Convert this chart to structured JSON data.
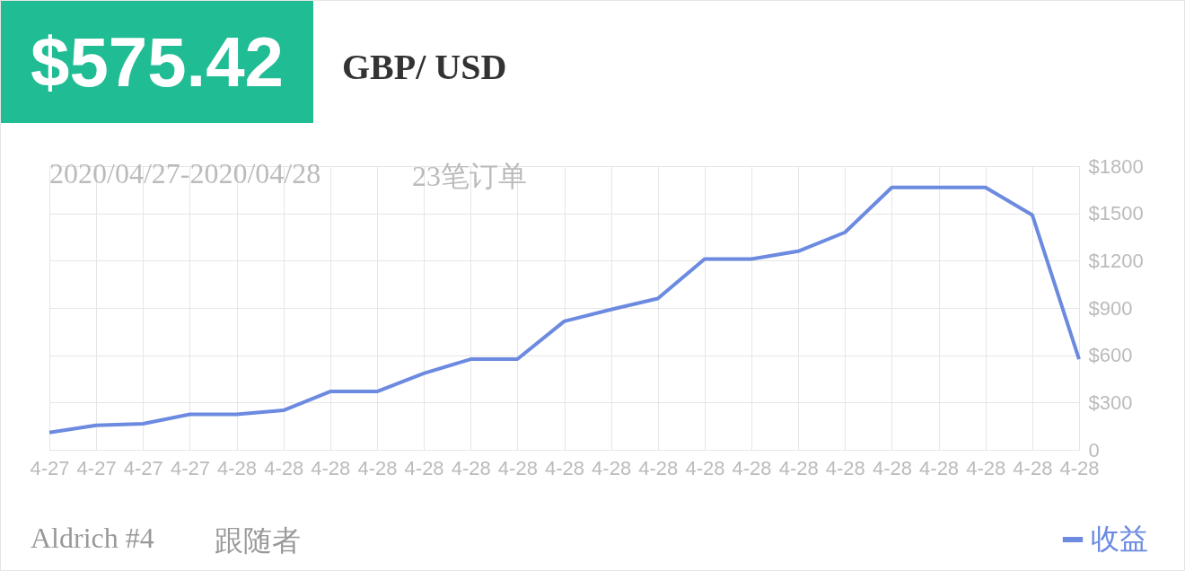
{
  "chart_data": {
    "type": "line",
    "title": "GBP/ USD",
    "annotations": [
      "$575.42",
      "2020/04/27-2020/04/28",
      "23笔订单",
      "Aldrich #4",
      "跟随者"
    ],
    "categories": [
      "4-27",
      "4-27",
      "4-27",
      "4-27",
      "4-28",
      "4-28",
      "4-28",
      "4-28",
      "4-28",
      "4-28",
      "4-28",
      "4-28",
      "4-28",
      "4-28",
      "4-28",
      "4-28",
      "4-28",
      "4-28",
      "4-28",
      "4-28",
      "4-28",
      "4-28",
      "4-28"
    ],
    "series": [
      {
        "name": "收益",
        "color": "#6b8ae0",
        "values": [
          110,
          155,
          165,
          225,
          225,
          250,
          370,
          370,
          485,
          575,
          575,
          815,
          890,
          960,
          1210,
          1210,
          1260,
          1380,
          1665,
          1665,
          1665,
          1490,
          575
        ]
      }
    ],
    "ylim": [
      0,
      1800
    ],
    "yticks": [
      0,
      {
        "value": 300,
        "label": "$300"
      },
      {
        "value": 600,
        "label": "$600"
      },
      {
        "value": 900,
        "label": "$900"
      },
      {
        "value": 1200,
        "label": "$1200"
      },
      {
        "value": 1500,
        "label": "$1500"
      },
      {
        "value": 1800,
        "label": "$1800"
      }
    ],
    "grid": true,
    "legend": "bottom right"
  }
}
